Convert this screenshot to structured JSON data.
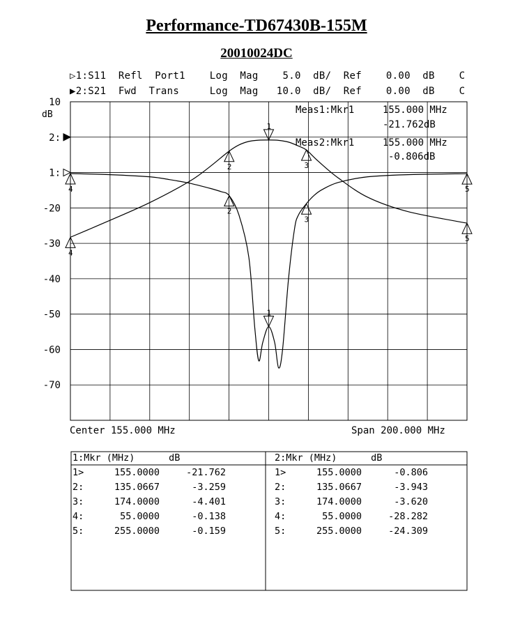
{
  "title": "Performance-TD67430B-155M",
  "subtitle": "20010024DC",
  "header": {
    "line1": {
      "marker": "▷",
      "text": "1:S11  Refl  Port1    Log  Mag    5.0  dB/  Ref    0.00  dB    C"
    },
    "line2": {
      "marker": "▶",
      "text": "2:S21  Fwd  Trans     Log  Mag   10.0  dB/  Ref    0.00  dB    C"
    }
  },
  "meas": {
    "m1_label": "Meas1:Mkr1",
    "m1_freq": "155.000 MHz",
    "m1_val": "-21.762dB",
    "m2_label": "Meas2:Mkr1",
    "m2_freq": "155.000 MHz",
    "m2_val": "-0.806dB"
  },
  "footer": {
    "center": "Center 155.000 MHz",
    "span": "Span 200.000 MHz"
  },
  "chart_data": {
    "type": "line",
    "ylabel": "dB",
    "xlim": [
      55,
      255
    ],
    "ylim": [
      -80,
      10
    ],
    "y_tick_labels": [
      "10",
      "2:",
      "1:",
      "-20",
      "-30",
      "-40",
      "-50",
      "-60",
      "-70"
    ],
    "y_tick_values": [
      10,
      0,
      -10,
      -20,
      -30,
      -40,
      -50,
      -60,
      -70
    ],
    "y_ref_markers": [
      {
        "label": "2:",
        "value": 0,
        "style": "filled"
      },
      {
        "label": "1:",
        "value": -10,
        "style": "open"
      }
    ],
    "grid": true,
    "series": [
      {
        "name": "1:S11 Refl Port1",
        "scale": "5.0 dB/div, ref 0.00 dB at grid line -10",
        "x": [
          55,
          75,
          95,
          105,
          115,
          125,
          131,
          135.07,
          140,
          145,
          148,
          150,
          152,
          155,
          158,
          160,
          162,
          165,
          168,
          170,
          174,
          178,
          182,
          190,
          205,
          225,
          255
        ],
        "values": [
          -0.14,
          -0.3,
          -0.6,
          -1.0,
          -1.5,
          -2.2,
          -2.7,
          -3.26,
          -6,
          -12,
          -22,
          -26.6,
          -24,
          -21.76,
          -24,
          -27.6,
          -25,
          -15,
          -8,
          -6,
          -4.4,
          -3.2,
          -2.4,
          -1.4,
          -0.6,
          -0.3,
          -0.16
        ],
        "color": "#000000"
      },
      {
        "name": "2:S21 Fwd Trans",
        "scale": "10.0 dB/div, ref 0.00 dB",
        "x": [
          55,
          75,
          95,
          115,
          125,
          135.07,
          140,
          145,
          150,
          155,
          160,
          165,
          170,
          174,
          180,
          190,
          205,
          225,
          255
        ],
        "values": [
          -28.28,
          -23.5,
          -18.5,
          -12.5,
          -8.5,
          -3.94,
          -2.2,
          -1.2,
          -0.85,
          -0.81,
          -0.9,
          -1.4,
          -2.5,
          -3.62,
          -6.8,
          -11.5,
          -17,
          -21,
          -24.31
        ],
        "color": "#000000"
      }
    ],
    "markers": {
      "s11": [
        {
          "n": "1",
          "x": 155,
          "y": -21.762
        },
        {
          "n": "2",
          "x": 135.0667,
          "y": -3.259
        },
        {
          "n": "3",
          "x": 174,
          "y": -4.401
        },
        {
          "n": "4",
          "x": 55,
          "y": -0.138
        },
        {
          "n": "5",
          "x": 255,
          "y": -0.159
        }
      ],
      "s21": [
        {
          "n": "1",
          "x": 155,
          "y": -0.806
        },
        {
          "n": "2",
          "x": 135.0667,
          "y": -3.943
        },
        {
          "n": "3",
          "x": 174,
          "y": -3.62
        },
        {
          "n": "4",
          "x": 55,
          "y": -28.282
        },
        {
          "n": "5",
          "x": 255,
          "y": -24.309
        }
      ]
    }
  },
  "table": {
    "left_header": "1:Mkr (MHz)      dB",
    "right_header": "2:Mkr (MHz)      dB",
    "left_rows": [
      {
        "idx": "1>",
        "freq": "155.0000",
        "val": "-21.762"
      },
      {
        "idx": "2:",
        "freq": "135.0667",
        "val": "-3.259"
      },
      {
        "idx": "3:",
        "freq": "174.0000",
        "val": "-4.401"
      },
      {
        "idx": "4:",
        "freq": "55.0000",
        "val": "-0.138"
      },
      {
        "idx": "5:",
        "freq": "255.0000",
        "val": "-0.159"
      }
    ],
    "right_rows": [
      {
        "idx": "1>",
        "freq": "155.0000",
        "val": "-0.806"
      },
      {
        "idx": "2:",
        "freq": "135.0667",
        "val": "-3.943"
      },
      {
        "idx": "3:",
        "freq": "174.0000",
        "val": "-3.620"
      },
      {
        "idx": "4:",
        "freq": "55.0000",
        "val": "-28.282"
      },
      {
        "idx": "5:",
        "freq": "255.0000",
        "val": "-24.309"
      }
    ]
  }
}
